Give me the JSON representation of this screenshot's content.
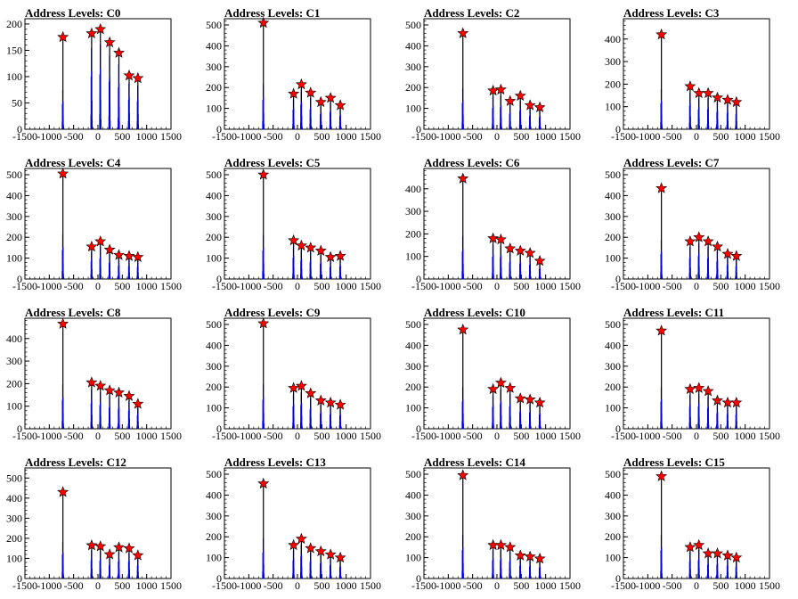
{
  "chart_data": [
    {
      "type": "bar",
      "title": "Address Levels: C0",
      "xlim": [
        -1500,
        1500
      ],
      "ylim": [
        0,
        210
      ],
      "yticks": [
        0,
        50,
        100,
        150,
        200
      ],
      "xticks": [
        -1500,
        -1000,
        -500,
        0,
        500,
        1000,
        1500
      ],
      "xtick_labels": [
        "-1500",
        "-1000",
        "-500",
        "0",
        "500",
        "1000",
        "1500"
      ],
      "peaks": [
        {
          "x": -720,
          "y": 175
        },
        {
          "x": -130,
          "y": 182
        },
        {
          "x": 50,
          "y": 190
        },
        {
          "x": 240,
          "y": 165
        },
        {
          "x": 430,
          "y": 145
        },
        {
          "x": 640,
          "y": 102
        },
        {
          "x": 820,
          "y": 97
        }
      ]
    },
    {
      "type": "bar",
      "title": "Address Levels: C1",
      "xlim": [
        -1500,
        1500
      ],
      "ylim": [
        0,
        530
      ],
      "yticks": [
        0,
        100,
        200,
        300,
        400,
        500
      ],
      "xticks": [
        -1500,
        -1000,
        -500,
        0,
        500,
        1000,
        1500
      ],
      "xtick_labels": [
        "-1500",
        "-1000",
        "-500",
        "0",
        "500",
        "1000",
        "1500"
      ],
      "peaks": [
        {
          "x": -700,
          "y": 510
        },
        {
          "x": -80,
          "y": 170
        },
        {
          "x": 80,
          "y": 215
        },
        {
          "x": 270,
          "y": 175
        },
        {
          "x": 480,
          "y": 130
        },
        {
          "x": 680,
          "y": 150
        },
        {
          "x": 880,
          "y": 115
        }
      ]
    },
    {
      "type": "bar",
      "title": "Address Levels: C2",
      "xlim": [
        -1500,
        1500
      ],
      "ylim": [
        0,
        530
      ],
      "yticks": [
        0,
        100,
        200,
        300,
        400,
        500
      ],
      "xticks": [
        -1500,
        -1000,
        -500,
        0,
        500,
        1000,
        1500
      ],
      "xtick_labels": [
        "-1500",
        "-1000",
        "-500",
        "0",
        "500",
        "1000",
        "1500"
      ],
      "peaks": [
        {
          "x": -700,
          "y": 460
        },
        {
          "x": -80,
          "y": 185
        },
        {
          "x": 80,
          "y": 190
        },
        {
          "x": 270,
          "y": 135
        },
        {
          "x": 480,
          "y": 160
        },
        {
          "x": 680,
          "y": 115
        },
        {
          "x": 880,
          "y": 105
        }
      ]
    },
    {
      "type": "bar",
      "title": "Address Levels: C3",
      "xlim": [
        -1500,
        1500
      ],
      "ylim": [
        0,
        490
      ],
      "yticks": [
        0,
        100,
        200,
        300,
        400
      ],
      "xticks": [
        -1500,
        -1000,
        -500,
        0,
        500,
        1000,
        1500
      ],
      "xtick_labels": [
        "-1500",
        "-1000",
        "-500",
        "0",
        "500",
        "1000",
        "1500"
      ],
      "peaks": [
        {
          "x": -720,
          "y": 420
        },
        {
          "x": -130,
          "y": 190
        },
        {
          "x": 50,
          "y": 160
        },
        {
          "x": 240,
          "y": 160
        },
        {
          "x": 430,
          "y": 140
        },
        {
          "x": 640,
          "y": 130
        },
        {
          "x": 820,
          "y": 120
        }
      ]
    },
    {
      "type": "bar",
      "title": "Address Levels: C4",
      "xlim": [
        -1500,
        1500
      ],
      "ylim": [
        0,
        530
      ],
      "yticks": [
        0,
        100,
        200,
        300,
        400,
        500
      ],
      "xticks": [
        -1500,
        -1000,
        -500,
        0,
        500,
        1000,
        1500
      ],
      "xtick_labels": [
        "-1500",
        "-1000",
        "-500",
        "0",
        "500",
        "1000",
        "1500"
      ],
      "peaks": [
        {
          "x": -720,
          "y": 505
        },
        {
          "x": -130,
          "y": 155
        },
        {
          "x": 50,
          "y": 180
        },
        {
          "x": 240,
          "y": 140
        },
        {
          "x": 430,
          "y": 115
        },
        {
          "x": 640,
          "y": 110
        },
        {
          "x": 820,
          "y": 105
        }
      ]
    },
    {
      "type": "bar",
      "title": "Address Levels: C5",
      "xlim": [
        -1500,
        1500
      ],
      "ylim": [
        0,
        530
      ],
      "yticks": [
        0,
        100,
        200,
        300,
        400,
        500
      ],
      "xticks": [
        -1500,
        -1000,
        -500,
        0,
        500,
        1000,
        1500
      ],
      "xtick_labels": [
        "-1500",
        "-1000",
        "-500",
        "0",
        "500",
        "1000",
        "1500"
      ],
      "peaks": [
        {
          "x": -700,
          "y": 500
        },
        {
          "x": -80,
          "y": 185
        },
        {
          "x": 80,
          "y": 160
        },
        {
          "x": 270,
          "y": 150
        },
        {
          "x": 480,
          "y": 135
        },
        {
          "x": 680,
          "y": 105
        },
        {
          "x": 880,
          "y": 110
        }
      ]
    },
    {
      "type": "bar",
      "title": "Address Levels: C6",
      "xlim": [
        -1500,
        1500
      ],
      "ylim": [
        0,
        490
      ],
      "yticks": [
        0,
        100,
        200,
        300,
        400
      ],
      "xticks": [
        -1500,
        -1000,
        -500,
        0,
        500,
        1000,
        1500
      ],
      "xtick_labels": [
        "-1500",
        "-1000",
        "-500",
        "0",
        "500",
        "1000",
        "1500"
      ],
      "peaks": [
        {
          "x": -700,
          "y": 445
        },
        {
          "x": -80,
          "y": 180
        },
        {
          "x": 80,
          "y": 175
        },
        {
          "x": 270,
          "y": 135
        },
        {
          "x": 480,
          "y": 125
        },
        {
          "x": 680,
          "y": 115
        },
        {
          "x": 880,
          "y": 80
        }
      ]
    },
    {
      "type": "bar",
      "title": "Address Levels: C7",
      "xlim": [
        -1500,
        1500
      ],
      "ylim": [
        0,
        530
      ],
      "yticks": [
        0,
        100,
        200,
        300,
        400,
        500
      ],
      "xticks": [
        -1500,
        -1000,
        -500,
        0,
        500,
        1000,
        1500
      ],
      "xtick_labels": [
        "-1500",
        "-1000",
        "-500",
        "0",
        "500",
        "1000",
        "1500"
      ],
      "peaks": [
        {
          "x": -720,
          "y": 435
        },
        {
          "x": -130,
          "y": 180
        },
        {
          "x": 50,
          "y": 200
        },
        {
          "x": 240,
          "y": 180
        },
        {
          "x": 430,
          "y": 155
        },
        {
          "x": 640,
          "y": 120
        },
        {
          "x": 820,
          "y": 110
        }
      ]
    },
    {
      "type": "bar",
      "title": "Address Levels: C8",
      "xlim": [
        -1500,
        1500
      ],
      "ylim": [
        0,
        490
      ],
      "yticks": [
        0,
        100,
        200,
        300,
        400
      ],
      "xticks": [
        -1500,
        -1000,
        -500,
        0,
        500,
        1000,
        1500
      ],
      "xtick_labels": [
        "-1500",
        "-1000",
        "-500",
        "0",
        "500",
        "1000",
        "1500"
      ],
      "peaks": [
        {
          "x": -720,
          "y": 465
        },
        {
          "x": -130,
          "y": 205
        },
        {
          "x": 50,
          "y": 190
        },
        {
          "x": 240,
          "y": 170
        },
        {
          "x": 430,
          "y": 160
        },
        {
          "x": 640,
          "y": 145
        },
        {
          "x": 820,
          "y": 110
        }
      ]
    },
    {
      "type": "bar",
      "title": "Address Levels: C9",
      "xlim": [
        -1500,
        1500
      ],
      "ylim": [
        0,
        530
      ],
      "yticks": [
        0,
        100,
        200,
        300,
        400,
        500
      ],
      "xticks": [
        -1500,
        -1000,
        -500,
        0,
        500,
        1000,
        1500
      ],
      "xtick_labels": [
        "-1500",
        "-1000",
        "-500",
        "0",
        "500",
        "1000",
        "1500"
      ],
      "peaks": [
        {
          "x": -700,
          "y": 505
        },
        {
          "x": -80,
          "y": 195
        },
        {
          "x": 80,
          "y": 205
        },
        {
          "x": 270,
          "y": 170
        },
        {
          "x": 480,
          "y": 135
        },
        {
          "x": 680,
          "y": 125
        },
        {
          "x": 880,
          "y": 115
        }
      ]
    },
    {
      "type": "bar",
      "title": "Address Levels: C10",
      "xlim": [
        -1500,
        1500
      ],
      "ylim": [
        0,
        530
      ],
      "yticks": [
        0,
        100,
        200,
        300,
        400,
        500
      ],
      "xticks": [
        -1500,
        -1000,
        -500,
        0,
        500,
        1000,
        1500
      ],
      "xtick_labels": [
        "-1500",
        "-1000",
        "-500",
        "0",
        "500",
        "1000",
        "1500"
      ],
      "peaks": [
        {
          "x": -700,
          "y": 475
        },
        {
          "x": -80,
          "y": 190
        },
        {
          "x": 80,
          "y": 220
        },
        {
          "x": 270,
          "y": 195
        },
        {
          "x": 480,
          "y": 145
        },
        {
          "x": 680,
          "y": 140
        },
        {
          "x": 880,
          "y": 125
        }
      ]
    },
    {
      "type": "bar",
      "title": "Address Levels: C11",
      "xlim": [
        -1500,
        1500
      ],
      "ylim": [
        0,
        530
      ],
      "yticks": [
        0,
        100,
        200,
        300,
        400,
        500
      ],
      "xticks": [
        -1500,
        -1000,
        -500,
        0,
        500,
        1000,
        1500
      ],
      "xtick_labels": [
        "-1500",
        "-1000",
        "-500",
        "0",
        "500",
        "1000",
        "1500"
      ],
      "peaks": [
        {
          "x": -720,
          "y": 470
        },
        {
          "x": -130,
          "y": 190
        },
        {
          "x": 50,
          "y": 195
        },
        {
          "x": 240,
          "y": 180
        },
        {
          "x": 430,
          "y": 135
        },
        {
          "x": 640,
          "y": 125
        },
        {
          "x": 820,
          "y": 125
        }
      ]
    },
    {
      "type": "bar",
      "title": "Address Levels: C12",
      "xlim": [
        -1500,
        1500
      ],
      "ylim": [
        0,
        550
      ],
      "yticks": [
        0,
        100,
        200,
        300,
        400,
        500
      ],
      "xticks": [
        -1500,
        -1000,
        -500,
        0,
        500,
        1000,
        1500
      ],
      "xtick_labels": [
        "-1500",
        "-1000",
        "-500",
        "0",
        "500",
        "1000",
        "1500"
      ],
      "peaks": [
        {
          "x": -720,
          "y": 430
        },
        {
          "x": -130,
          "y": 165
        },
        {
          "x": 50,
          "y": 160
        },
        {
          "x": 240,
          "y": 120
        },
        {
          "x": 430,
          "y": 155
        },
        {
          "x": 640,
          "y": 150
        },
        {
          "x": 820,
          "y": 115
        }
      ]
    },
    {
      "type": "bar",
      "title": "Address Levels: C13",
      "xlim": [
        -1500,
        1500
      ],
      "ylim": [
        0,
        530
      ],
      "yticks": [
        0,
        100,
        200,
        300,
        400,
        500
      ],
      "xticks": [
        -1500,
        -1000,
        -500,
        0,
        500,
        1000,
        1500
      ],
      "xtick_labels": [
        "-1500",
        "-1000",
        "-500",
        "0",
        "500",
        "1000",
        "1500"
      ],
      "peaks": [
        {
          "x": -700,
          "y": 455
        },
        {
          "x": -80,
          "y": 160
        },
        {
          "x": 80,
          "y": 190
        },
        {
          "x": 270,
          "y": 145
        },
        {
          "x": 480,
          "y": 130
        },
        {
          "x": 680,
          "y": 115
        },
        {
          "x": 880,
          "y": 100
        }
      ]
    },
    {
      "type": "bar",
      "title": "Address Levels: C14",
      "xlim": [
        -1500,
        1500
      ],
      "ylim": [
        0,
        530
      ],
      "yticks": [
        0,
        100,
        200,
        300,
        400,
        500
      ],
      "xticks": [
        -1500,
        -1000,
        -500,
        0,
        500,
        1000,
        1500
      ],
      "xtick_labels": [
        "-1500",
        "-1000",
        "-500",
        "0",
        "500",
        "1000",
        "1500"
      ],
      "peaks": [
        {
          "x": -700,
          "y": 495
        },
        {
          "x": -80,
          "y": 160
        },
        {
          "x": 80,
          "y": 160
        },
        {
          "x": 270,
          "y": 150
        },
        {
          "x": 480,
          "y": 110
        },
        {
          "x": 680,
          "y": 105
        },
        {
          "x": 880,
          "y": 95
        }
      ]
    },
    {
      "type": "bar",
      "title": "Address Levels: C15",
      "xlim": [
        -1500,
        1500
      ],
      "ylim": [
        0,
        530
      ],
      "yticks": [
        0,
        100,
        200,
        300,
        400,
        500
      ],
      "xticks": [
        -1500,
        -1000,
        -500,
        0,
        500,
        1000,
        1500
      ],
      "xtick_labels": [
        "-1500",
        "-1000",
        "-500",
        "0",
        "500",
        "1000",
        "1500"
      ],
      "peaks": [
        {
          "x": -720,
          "y": 490
        },
        {
          "x": -130,
          "y": 150
        },
        {
          "x": 50,
          "y": 160
        },
        {
          "x": 240,
          "y": 120
        },
        {
          "x": 430,
          "y": 120
        },
        {
          "x": 640,
          "y": 110
        },
        {
          "x": 820,
          "y": 100
        }
      ]
    }
  ],
  "colors": {
    "histogram": "#0000ff",
    "histogram_edge": "#000000",
    "marker": "#ff0000",
    "marker_edge": "#000000",
    "axis": "#000000"
  },
  "marker_shape": "star"
}
